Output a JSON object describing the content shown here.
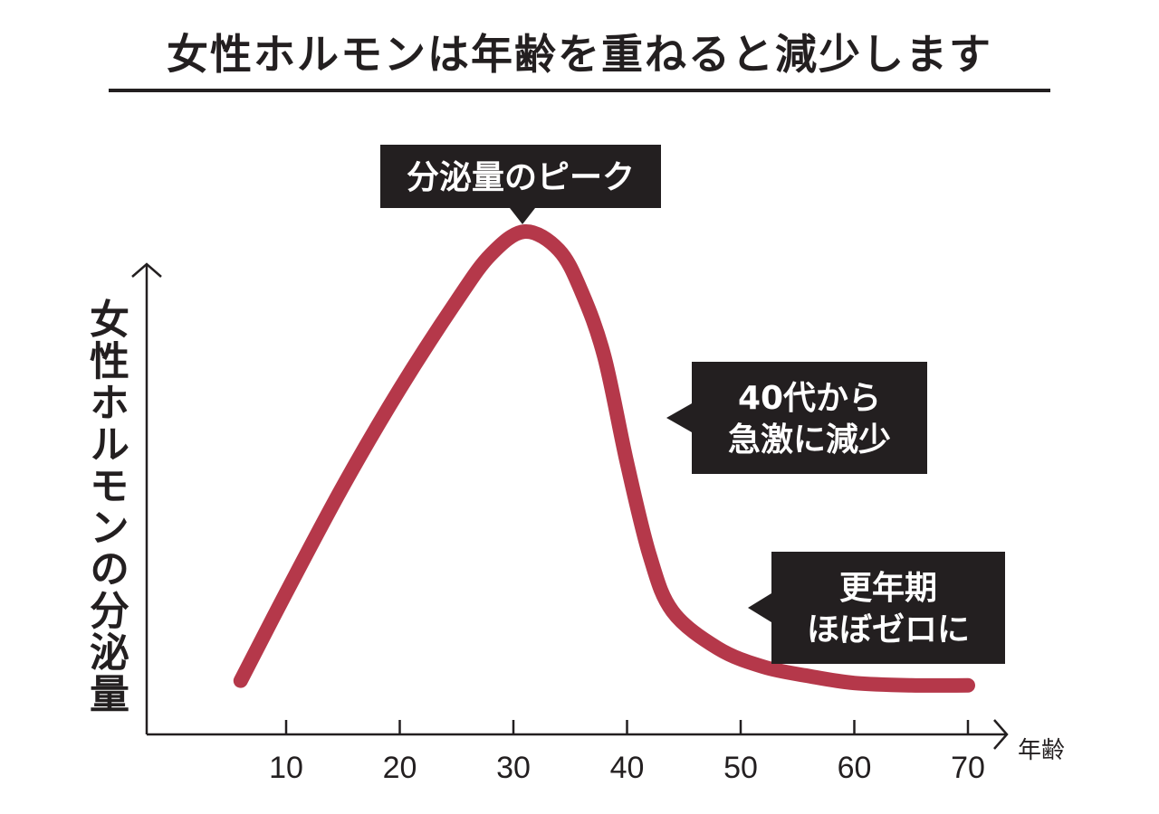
{
  "title": "女性ホルモンは年齢を重ねると減少します",
  "chart_data": {
    "type": "line",
    "title": "女性ホルモンは年齢を重ねると減少します",
    "xlabel": "年齢",
    "ylabel": "女性ホルモンの分泌量",
    "xlim": [
      0,
      70
    ],
    "x_ticks": [
      10,
      20,
      30,
      40,
      50,
      60,
      70
    ],
    "y_ticks_shown": false,
    "grid": false,
    "series": [
      {
        "color": "#b5384a",
        "points": [
          {
            "x": 6,
            "y": 0.03
          },
          {
            "x": 10,
            "y": 0.22
          },
          {
            "x": 15,
            "y": 0.45
          },
          {
            "x": 20,
            "y": 0.66
          },
          {
            "x": 25,
            "y": 0.85
          },
          {
            "x": 28,
            "y": 0.95
          },
          {
            "x": 31,
            "y": 1.0
          },
          {
            "x": 34,
            "y": 0.96
          },
          {
            "x": 36,
            "y": 0.87
          },
          {
            "x": 38,
            "y": 0.73
          },
          {
            "x": 40,
            "y": 0.5
          },
          {
            "x": 42,
            "y": 0.3
          },
          {
            "x": 44,
            "y": 0.18
          },
          {
            "x": 48,
            "y": 0.1
          },
          {
            "x": 52,
            "y": 0.06
          },
          {
            "x": 56,
            "y": 0.04
          },
          {
            "x": 60,
            "y": 0.025
          },
          {
            "x": 65,
            "y": 0.02
          },
          {
            "x": 70,
            "y": 0.02
          }
        ]
      }
    ],
    "annotations": [
      {
        "text_lines": [
          "分泌量のピーク"
        ],
        "x": 31,
        "pointer": "down"
      },
      {
        "text_lines": [
          "40代から",
          "急激に減少"
        ],
        "x": 42,
        "pointer": "left"
      },
      {
        "text_lines": [
          "更年期",
          "ほぼゼロに"
        ],
        "x": 53,
        "pointer": "left"
      }
    ]
  },
  "colors": {
    "curve": "#b5384a",
    "axis": "#231f20",
    "callout_bg": "#231f20",
    "callout_text": "#ffffff"
  }
}
